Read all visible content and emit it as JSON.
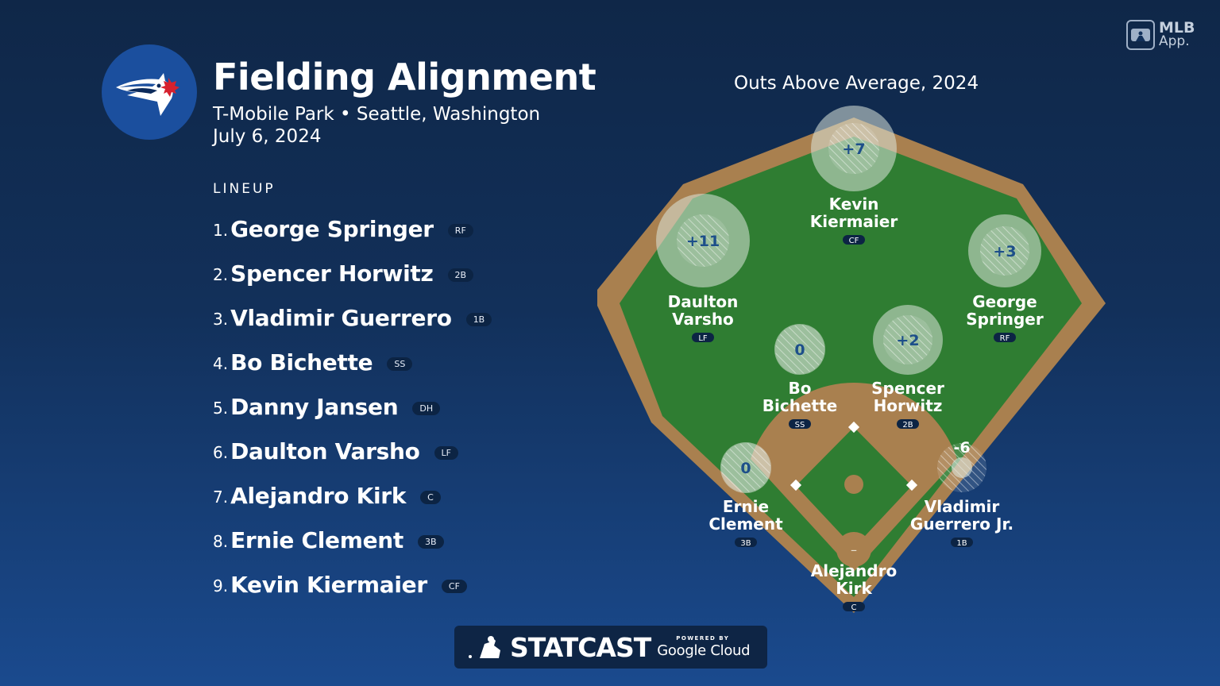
{
  "header": {
    "title": "Fielding Alignment",
    "venue": "T-Mobile Park • Seattle, Washington",
    "date": "July 6, 2024"
  },
  "lineup": {
    "label": "LINEUP",
    "players": [
      {
        "num": "1.",
        "name": "George Springer",
        "pos": "RF"
      },
      {
        "num": "2.",
        "name": "Spencer Horwitz",
        "pos": "2B"
      },
      {
        "num": "3.",
        "name": "Vladimir Guerrero",
        "pos": "1B"
      },
      {
        "num": "4.",
        "name": "Bo Bichette",
        "pos": "SS"
      },
      {
        "num": "5.",
        "name": "Danny Jansen",
        "pos": "DH"
      },
      {
        "num": "6.",
        "name": "Daulton Varsho",
        "pos": "LF"
      },
      {
        "num": "7.",
        "name": "Alejandro Kirk",
        "pos": "C"
      },
      {
        "num": "8.",
        "name": "Ernie Clement",
        "pos": "3B"
      },
      {
        "num": "9.",
        "name": "Kevin Kiermaier",
        "pos": "CF"
      }
    ]
  },
  "field": {
    "title": "Outs Above Average, 2024",
    "positions": {
      "cf": {
        "oaa": "+7",
        "line1": "Kevin",
        "line2": "Kiermaier",
        "pos": "CF"
      },
      "lf": {
        "oaa": "+11",
        "line1": "Daulton",
        "line2": "Varsho",
        "pos": "LF"
      },
      "rf": {
        "oaa": "+3",
        "line1": "George",
        "line2": "Springer",
        "pos": "RF"
      },
      "ss": {
        "oaa": "0",
        "line1": "Bo",
        "line2": "Bichette",
        "pos": "SS"
      },
      "2b": {
        "oaa": "+2",
        "line1": "Spencer",
        "line2": "Horwitz",
        "pos": "2B"
      },
      "3b": {
        "oaa": "0",
        "line1": "Ernie",
        "line2": "Clement",
        "pos": "3B"
      },
      "1b": {
        "oaa": "-6",
        "line1": "Vladimir",
        "line2": "Guerrero Jr.",
        "pos": "1B"
      },
      "c": {
        "oaa": "–",
        "line1": "Alejandro",
        "line2": "Kirk",
        "pos": "C"
      }
    }
  },
  "mlb_app": {
    "line1": "MLB",
    "line2": "App."
  },
  "footer": {
    "brand": "STATCAST",
    "powered_by": "POWERED BY",
    "partner": "Google Cloud"
  },
  "colors": {
    "background_top": "#0f2748",
    "background_bottom": "#1a4a8e",
    "grass": "#2f7d32",
    "dirt": "#a9804f",
    "logo_circle": "#1b4f9e"
  }
}
